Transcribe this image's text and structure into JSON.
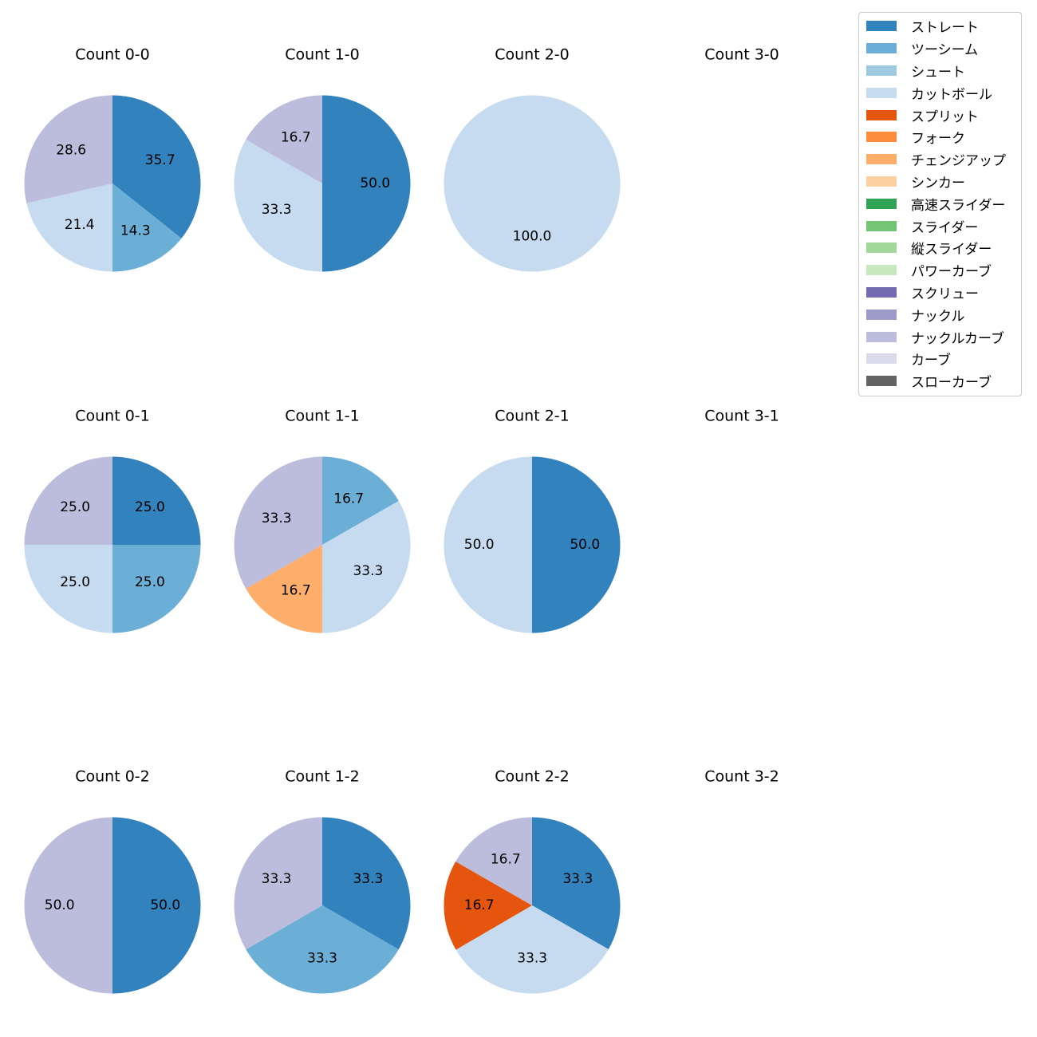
{
  "chart_data": {
    "type": "pie",
    "legend_position": "top-right",
    "legend": [
      {
        "name": "ストレート",
        "color": "#3182bd"
      },
      {
        "name": "ツーシーム",
        "color": "#6baed6"
      },
      {
        "name": "シュート",
        "color": "#9ecae1"
      },
      {
        "name": "カットボール",
        "color": "#c6dbef"
      },
      {
        "name": "スプリット",
        "color": "#e6550d"
      },
      {
        "name": "フォーク",
        "color": "#fd8d3c"
      },
      {
        "name": "チェンジアップ",
        "color": "#fdae6b"
      },
      {
        "name": "シンカー",
        "color": "#fdd0a2"
      },
      {
        "name": "高速スライダー",
        "color": "#31a354"
      },
      {
        "name": "スライダー",
        "color": "#74c476"
      },
      {
        "name": "縦スライダー",
        "color": "#a1d99b"
      },
      {
        "name": "パワーカーブ",
        "color": "#c7e9c0"
      },
      {
        "name": "スクリュー",
        "color": "#756bb1"
      },
      {
        "name": "ナックル",
        "color": "#9e9ac8"
      },
      {
        "name": "ナックルカーブ",
        "color": "#bcbddc"
      },
      {
        "name": "カーブ",
        "color": "#dadaeb"
      },
      {
        "name": "スローカーブ",
        "color": "#636363"
      }
    ],
    "panels": [
      {
        "title": "Count 0-0",
        "slices": [
          {
            "pitch": "ストレート",
            "value": 35.7
          },
          {
            "pitch": "ツーシーム",
            "value": 14.3
          },
          {
            "pitch": "カットボール",
            "value": 21.4
          },
          {
            "pitch": "ナックルカーブ",
            "value": 28.6
          }
        ]
      },
      {
        "title": "Count 1-0",
        "slices": [
          {
            "pitch": "ストレート",
            "value": 50.0
          },
          {
            "pitch": "カットボール",
            "value": 33.3
          },
          {
            "pitch": "ナックルカーブ",
            "value": 16.7
          }
        ]
      },
      {
        "title": "Count 2-0",
        "slices": [
          {
            "pitch": "カットボール",
            "value": 100.0
          }
        ]
      },
      {
        "title": "Count 3-0",
        "slices": []
      },
      {
        "title": "Count 0-1",
        "slices": [
          {
            "pitch": "ストレート",
            "value": 25.0
          },
          {
            "pitch": "ツーシーム",
            "value": 25.0
          },
          {
            "pitch": "カットボール",
            "value": 25.0
          },
          {
            "pitch": "ナックルカーブ",
            "value": 25.0
          }
        ]
      },
      {
        "title": "Count 1-1",
        "slices": [
          {
            "pitch": "ツーシーム",
            "value": 16.7
          },
          {
            "pitch": "カットボール",
            "value": 33.3
          },
          {
            "pitch": "チェンジアップ",
            "value": 16.7
          },
          {
            "pitch": "ナックルカーブ",
            "value": 33.3
          }
        ]
      },
      {
        "title": "Count 2-1",
        "slices": [
          {
            "pitch": "ストレート",
            "value": 50.0
          },
          {
            "pitch": "カットボール",
            "value": 50.0
          }
        ]
      },
      {
        "title": "Count 3-1",
        "slices": []
      },
      {
        "title": "Count 0-2",
        "slices": [
          {
            "pitch": "ストレート",
            "value": 50.0
          },
          {
            "pitch": "ナックルカーブ",
            "value": 50.0
          }
        ]
      },
      {
        "title": "Count 1-2",
        "slices": [
          {
            "pitch": "ストレート",
            "value": 33.3
          },
          {
            "pitch": "ツーシーム",
            "value": 33.3
          },
          {
            "pitch": "ナックルカーブ",
            "value": 33.3
          }
        ]
      },
      {
        "title": "Count 2-2",
        "slices": [
          {
            "pitch": "ストレート",
            "value": 33.3
          },
          {
            "pitch": "カットボール",
            "value": 33.3
          },
          {
            "pitch": "スプリット",
            "value": 16.7
          },
          {
            "pitch": "ナックルカーブ",
            "value": 16.7
          }
        ]
      },
      {
        "title": "Count 3-2",
        "slices": []
      }
    ]
  }
}
